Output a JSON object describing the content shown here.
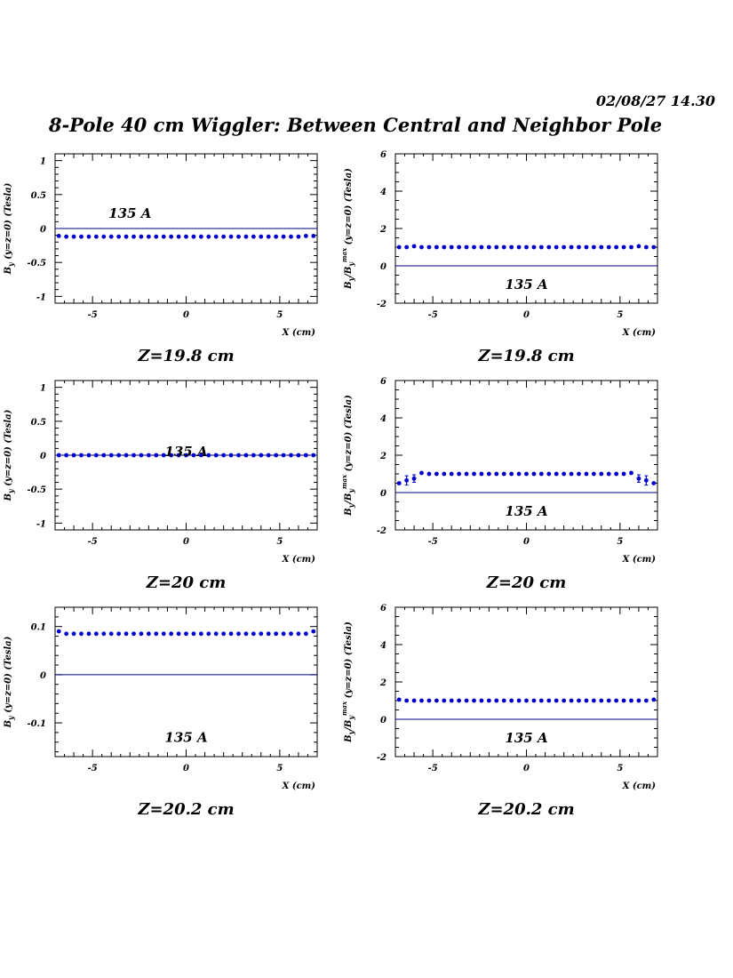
{
  "header": {
    "date": "02/08/27   14.30",
    "title": "8-Pole 40 cm Wiggler: Between Central and Neighbor Pole"
  },
  "colors": {
    "marker": "#0000cc",
    "reference_line": "#000080",
    "axes": "#000000"
  },
  "chart_data": [
    {
      "type": "scatter",
      "row": 0,
      "col": 0,
      "zlabel": "Z=19.8 cm",
      "annotation": "135 A",
      "annotation_pos": [
        -3,
        0.22
      ],
      "xlabel": "X (cm)",
      "ylabel": "By(y=z=0) (Tesla)",
      "xlim": [
        -7,
        7
      ],
      "ylim": [
        -1.1,
        1.1
      ],
      "xticks": [
        -5,
        0,
        5
      ],
      "xticklabels": [
        "-5",
        "0",
        "5"
      ],
      "yticks": [
        -1,
        -0.5,
        0,
        0.5,
        1
      ],
      "yticklabels": [
        "-1",
        "-0.5",
        "0",
        "0.5",
        "1"
      ],
      "yminor": [
        -1.1,
        -1.0,
        -0.9,
        -0.8,
        -0.7,
        -0.6,
        -0.5,
        -0.4,
        -0.3,
        -0.2,
        -0.1,
        0,
        0.1,
        0.2,
        0.3,
        0.4,
        0.5,
        0.6,
        0.7,
        0.8,
        0.9,
        1.0,
        1.1
      ],
      "reference_y": 0,
      "x": [
        -6.8,
        -6.4,
        -6.0,
        -5.6,
        -5.2,
        -4.8,
        -4.4,
        -4.0,
        -3.6,
        -3.2,
        -2.8,
        -2.4,
        -2.0,
        -1.6,
        -1.2,
        -0.8,
        -0.4,
        0.0,
        0.4,
        0.8,
        1.2,
        1.6,
        2.0,
        2.4,
        2.8,
        3.2,
        3.6,
        4.0,
        4.4,
        4.8,
        5.2,
        5.6,
        6.0,
        6.4,
        6.8
      ],
      "y": [
        -0.11,
        -0.12,
        -0.12,
        -0.12,
        -0.12,
        -0.12,
        -0.12,
        -0.12,
        -0.12,
        -0.12,
        -0.12,
        -0.12,
        -0.12,
        -0.12,
        -0.12,
        -0.12,
        -0.12,
        -0.12,
        -0.12,
        -0.12,
        -0.12,
        -0.12,
        -0.12,
        -0.12,
        -0.12,
        -0.12,
        -0.12,
        -0.12,
        -0.12,
        -0.12,
        -0.12,
        -0.12,
        -0.12,
        -0.11,
        -0.11
      ],
      "yerr": []
    },
    {
      "type": "scatter",
      "row": 0,
      "col": 1,
      "zlabel": "Z=19.8 cm",
      "annotation": "135 A",
      "annotation_pos": [
        0,
        -1.0
      ],
      "xlabel": "X (cm)",
      "ylabel": "By/By max (y=z=0) (Tesla)",
      "xlim": [
        -7,
        7
      ],
      "ylim": [
        -2,
        6
      ],
      "xticks": [
        -5,
        0,
        5
      ],
      "xticklabels": [
        "-5",
        "0",
        "5"
      ],
      "yticks": [
        -2,
        0,
        2,
        4,
        6
      ],
      "yticklabels": [
        "-2",
        "0",
        "2",
        "4",
        "6"
      ],
      "yminor": [
        -2,
        -1.5,
        -1,
        -0.5,
        0,
        0.5,
        1,
        1.5,
        2,
        2.5,
        3,
        3.5,
        4,
        4.5,
        5,
        5.5,
        6
      ],
      "reference_y": 0,
      "x": [
        -6.8,
        -6.4,
        -6.0,
        -5.6,
        -5.2,
        -4.8,
        -4.4,
        -4.0,
        -3.6,
        -3.2,
        -2.8,
        -2.4,
        -2.0,
        -1.6,
        -1.2,
        -0.8,
        -0.4,
        0.0,
        0.4,
        0.8,
        1.2,
        1.6,
        2.0,
        2.4,
        2.8,
        3.2,
        3.6,
        4.0,
        4.4,
        4.8,
        5.2,
        5.6,
        6.0,
        6.4,
        6.8
      ],
      "y": [
        1.0,
        1.0,
        1.05,
        1.0,
        1.0,
        1.0,
        1.0,
        1.0,
        1.0,
        1.0,
        1.0,
        1.0,
        1.0,
        1.0,
        1.0,
        1.0,
        1.0,
        1.0,
        1.0,
        1.0,
        1.0,
        1.0,
        1.0,
        1.0,
        1.0,
        1.0,
        1.0,
        1.0,
        1.0,
        1.0,
        1.0,
        1.0,
        1.05,
        1.0,
        1.0
      ],
      "yerr": []
    },
    {
      "type": "scatter",
      "row": 1,
      "col": 0,
      "zlabel": "Z=20 cm",
      "annotation": "135 A",
      "annotation_pos": [
        0,
        0.05
      ],
      "xlabel": "X (cm)",
      "ylabel": "By(y=z=0) (Tesla)",
      "xlim": [
        -7,
        7
      ],
      "ylim": [
        -1.1,
        1.1
      ],
      "xticks": [
        -5,
        0,
        5
      ],
      "xticklabels": [
        "-5",
        "0",
        "5"
      ],
      "yticks": [
        -1,
        -0.5,
        0,
        0.5,
        1
      ],
      "yticklabels": [
        "-1",
        "-0.5",
        "0",
        "0.5",
        "1"
      ],
      "yminor": [
        -1.1,
        -1.0,
        -0.9,
        -0.8,
        -0.7,
        -0.6,
        -0.5,
        -0.4,
        -0.3,
        -0.2,
        -0.1,
        0,
        0.1,
        0.2,
        0.3,
        0.4,
        0.5,
        0.6,
        0.7,
        0.8,
        0.9,
        1.0,
        1.1
      ],
      "reference_y": 0,
      "x": [
        -6.8,
        -6.4,
        -6.0,
        -5.6,
        -5.2,
        -4.8,
        -4.4,
        -4.0,
        -3.6,
        -3.2,
        -2.8,
        -2.4,
        -2.0,
        -1.6,
        -1.2,
        -0.8,
        -0.4,
        0.0,
        0.4,
        0.8,
        1.2,
        1.6,
        2.0,
        2.4,
        2.8,
        3.2,
        3.6,
        4.0,
        4.4,
        4.8,
        5.2,
        5.6,
        6.0,
        6.4,
        6.8
      ],
      "y": [
        0.0,
        0.0,
        0.0,
        0.0,
        0.0,
        0.0,
        0.0,
        0.0,
        0.0,
        0.0,
        0.0,
        0.0,
        0.0,
        0.0,
        0.0,
        0.0,
        0.0,
        0.0,
        0.0,
        0.0,
        0.0,
        0.0,
        0.0,
        0.0,
        0.0,
        0.0,
        0.0,
        0.0,
        0.0,
        0.0,
        0.0,
        0.0,
        0.0,
        0.0,
        0.0
      ],
      "yerr": []
    },
    {
      "type": "scatter",
      "row": 1,
      "col": 1,
      "zlabel": "Z=20 cm",
      "annotation": "135 A",
      "annotation_pos": [
        0,
        -1.0
      ],
      "xlabel": "X (cm)",
      "ylabel": "By/By max (y=z=0) (Tesla)",
      "xlim": [
        -7,
        7
      ],
      "ylim": [
        -2,
        6
      ],
      "xticks": [
        -5,
        0,
        5
      ],
      "xticklabels": [
        "-5",
        "0",
        "5"
      ],
      "yticks": [
        -2,
        0,
        2,
        4,
        6
      ],
      "yticklabels": [
        "-2",
        "0",
        "2",
        "4",
        "6"
      ],
      "yminor": [
        -2,
        -1.5,
        -1,
        -0.5,
        0,
        0.5,
        1,
        1.5,
        2,
        2.5,
        3,
        3.5,
        4,
        4.5,
        5,
        5.5,
        6
      ],
      "reference_y": 0,
      "x": [
        -6.8,
        -6.4,
        -6.0,
        -5.6,
        -5.2,
        -4.8,
        -4.4,
        -4.0,
        -3.6,
        -3.2,
        -2.8,
        -2.4,
        -2.0,
        -1.6,
        -1.2,
        -0.8,
        -0.4,
        0.0,
        0.4,
        0.8,
        1.2,
        1.6,
        2.0,
        2.4,
        2.8,
        3.2,
        3.6,
        4.0,
        4.4,
        4.8,
        5.2,
        5.6,
        6.0,
        6.4,
        6.8
      ],
      "y": [
        0.5,
        0.65,
        0.75,
        1.05,
        1.0,
        1.0,
        1.0,
        1.0,
        1.0,
        1.0,
        1.0,
        1.0,
        1.0,
        1.0,
        1.0,
        1.0,
        1.0,
        1.0,
        1.0,
        1.0,
        1.0,
        1.0,
        1.0,
        1.0,
        1.0,
        1.0,
        1.0,
        1.0,
        1.0,
        1.0,
        1.0,
        1.05,
        0.75,
        0.65,
        0.5
      ],
      "yerr": [
        0.05,
        0.25,
        0.2,
        0.05,
        0,
        0,
        0,
        0,
        0,
        0,
        0,
        0,
        0,
        0,
        0,
        0,
        0,
        0,
        0,
        0,
        0,
        0,
        0,
        0,
        0,
        0,
        0,
        0,
        0,
        0,
        0,
        0.05,
        0.2,
        0.25,
        0.05
      ]
    },
    {
      "type": "scatter",
      "row": 2,
      "col": 0,
      "zlabel": "Z=20.2 cm",
      "annotation": "135 A",
      "annotation_pos": [
        0,
        -0.13
      ],
      "xlabel": "X (cm)",
      "ylabel": "By(y=z=0) (Tesla)",
      "xlim": [
        -7,
        7
      ],
      "ylim": [
        -0.17,
        0.14
      ],
      "xticks": [
        -5,
        0,
        5
      ],
      "xticklabels": [
        "-5",
        "0",
        "5"
      ],
      "yticks": [
        -0.1,
        0,
        0.1
      ],
      "yticklabels": [
        "-0.1",
        "0",
        "0.1"
      ],
      "yminor": [
        -0.16,
        -0.14,
        -0.12,
        -0.1,
        -0.08,
        -0.06,
        -0.04,
        -0.02,
        0,
        0.02,
        0.04,
        0.06,
        0.08,
        0.1,
        0.12,
        0.14
      ],
      "reference_y": 0,
      "x": [
        -6.8,
        -6.4,
        -6.0,
        -5.6,
        -5.2,
        -4.8,
        -4.4,
        -4.0,
        -3.6,
        -3.2,
        -2.8,
        -2.4,
        -2.0,
        -1.6,
        -1.2,
        -0.8,
        -0.4,
        0.0,
        0.4,
        0.8,
        1.2,
        1.6,
        2.0,
        2.4,
        2.8,
        3.2,
        3.6,
        4.0,
        4.4,
        4.8,
        5.2,
        5.6,
        6.0,
        6.4,
        6.8
      ],
      "y": [
        0.09,
        0.085,
        0.085,
        0.085,
        0.085,
        0.085,
        0.085,
        0.085,
        0.085,
        0.085,
        0.085,
        0.085,
        0.085,
        0.085,
        0.085,
        0.085,
        0.085,
        0.085,
        0.085,
        0.085,
        0.085,
        0.085,
        0.085,
        0.085,
        0.085,
        0.085,
        0.085,
        0.085,
        0.085,
        0.085,
        0.085,
        0.085,
        0.085,
        0.085,
        0.09
      ],
      "yerr": []
    },
    {
      "type": "scatter",
      "row": 2,
      "col": 1,
      "zlabel": "Z=20.2 cm",
      "annotation": "135 A",
      "annotation_pos": [
        0,
        -1.0
      ],
      "xlabel": "X (cm)",
      "ylabel": "By/By max (y=z=0) (Tesla)",
      "xlim": [
        -7,
        7
      ],
      "ylim": [
        -2,
        6
      ],
      "xticks": [
        -5,
        0,
        5
      ],
      "xticklabels": [
        "-5",
        "0",
        "5"
      ],
      "yticks": [
        -2,
        0,
        2,
        4,
        6
      ],
      "yticklabels": [
        "-2",
        "0",
        "2",
        "4",
        "6"
      ],
      "yminor": [
        -2,
        -1.5,
        -1,
        -0.5,
        0,
        0.5,
        1,
        1.5,
        2,
        2.5,
        3,
        3.5,
        4,
        4.5,
        5,
        5.5,
        6
      ],
      "reference_y": 0,
      "x": [
        -6.8,
        -6.4,
        -6.0,
        -5.6,
        -5.2,
        -4.8,
        -4.4,
        -4.0,
        -3.6,
        -3.2,
        -2.8,
        -2.4,
        -2.0,
        -1.6,
        -1.2,
        -0.8,
        -0.4,
        0.0,
        0.4,
        0.8,
        1.2,
        1.6,
        2.0,
        2.4,
        2.8,
        3.2,
        3.6,
        4.0,
        4.4,
        4.8,
        5.2,
        5.6,
        6.0,
        6.4,
        6.8
      ],
      "y": [
        1.05,
        1.0,
        1.0,
        1.0,
        1.0,
        1.0,
        1.0,
        1.0,
        1.0,
        1.0,
        1.0,
        1.0,
        1.0,
        1.0,
        1.0,
        1.0,
        1.0,
        1.0,
        1.0,
        1.0,
        1.0,
        1.0,
        1.0,
        1.0,
        1.0,
        1.0,
        1.0,
        1.0,
        1.0,
        1.0,
        1.0,
        1.0,
        1.0,
        1.0,
        1.05
      ],
      "yerr": []
    }
  ]
}
